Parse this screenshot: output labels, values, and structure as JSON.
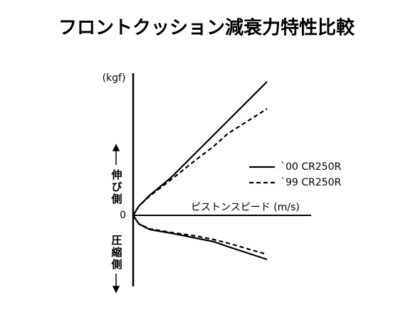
{
  "chart_data": {
    "type": "line",
    "title": "フロントクッション減衰力特性比較",
    "y_unit": "(kgf)",
    "x_label": "ピストンスピード (m/s)",
    "y_upper_label": "伸び側",
    "y_lower_label": "圧縮側",
    "x": [
      0,
      8,
      23,
      53,
      88,
      113,
      133,
      188
    ],
    "xlim": [
      0,
      250
    ],
    "ylim": [
      -100,
      200
    ],
    "yticks": [
      0
    ],
    "series": [
      {
        "name": "`00 CR250R",
        "color": "#000000",
        "dash": false,
        "values": [
          0,
          13,
          28,
          53,
          88,
          113,
          133,
          188
        ],
        "compression_values": [
          0,
          -12,
          -20,
          -25,
          -32,
          -37,
          -44,
          -62
        ]
      },
      {
        "name": "`99 CR250R",
        "color": "#000000",
        "dash": true,
        "values": [
          0,
          13,
          27,
          50,
          78,
          97,
          115,
          150
        ],
        "compression_values": [
          0,
          -12,
          -19,
          -24,
          -29,
          -34,
          -39,
          -55
        ]
      }
    ]
  }
}
